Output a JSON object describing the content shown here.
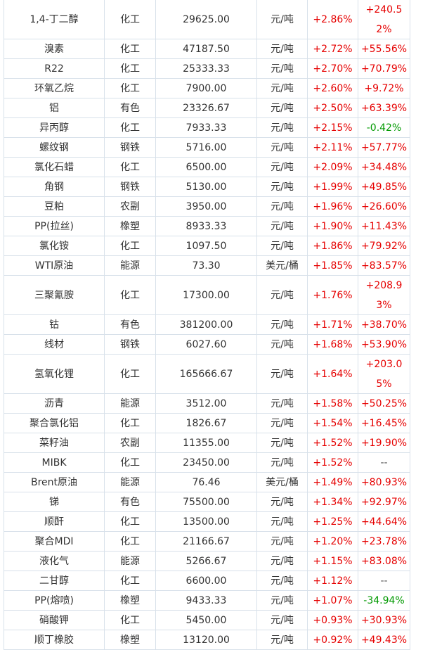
{
  "colors": {
    "up": "#e60000",
    "down": "#009900",
    "border": "#d8e1ea"
  },
  "rows": [
    {
      "name": "1,4-丁二醇",
      "cat": "化工",
      "price": "29625.00",
      "unit": "元/吨",
      "day": "+2.86%",
      "year": "+240.52%",
      "tall": true,
      "year_dir": "up"
    },
    {
      "name": "溴素",
      "cat": "化工",
      "price": "47187.50",
      "unit": "元/吨",
      "day": "+2.72%",
      "year": "+55.56%",
      "year_dir": "up"
    },
    {
      "name": "R22",
      "cat": "化工",
      "price": "25333.33",
      "unit": "元/吨",
      "day": "+2.70%",
      "year": "+70.79%",
      "year_dir": "up"
    },
    {
      "name": "环氧乙烷",
      "cat": "化工",
      "price": "7900.00",
      "unit": "元/吨",
      "day": "+2.60%",
      "year": "+9.72%",
      "year_dir": "up"
    },
    {
      "name": "铝",
      "cat": "有色",
      "price": "23326.67",
      "unit": "元/吨",
      "day": "+2.50%",
      "year": "+63.39%",
      "year_dir": "up"
    },
    {
      "name": "异丙醇",
      "cat": "化工",
      "price": "7933.33",
      "unit": "元/吨",
      "day": "+2.15%",
      "year": "-0.42%",
      "year_dir": "down"
    },
    {
      "name": "螺纹钢",
      "cat": "钢铁",
      "price": "5716.00",
      "unit": "元/吨",
      "day": "+2.11%",
      "year": "+57.77%",
      "year_dir": "up"
    },
    {
      "name": "氯化石蜡",
      "cat": "化工",
      "price": "6500.00",
      "unit": "元/吨",
      "day": "+2.09%",
      "year": "+34.48%",
      "year_dir": "up"
    },
    {
      "name": "角钢",
      "cat": "钢铁",
      "price": "5130.00",
      "unit": "元/吨",
      "day": "+1.99%",
      "year": "+49.85%",
      "year_dir": "up"
    },
    {
      "name": "豆粕",
      "cat": "农副",
      "price": "3950.00",
      "unit": "元/吨",
      "day": "+1.96%",
      "year": "+26.60%",
      "year_dir": "up"
    },
    {
      "name": "PP(拉丝)",
      "cat": "橡塑",
      "price": "8933.33",
      "unit": "元/吨",
      "day": "+1.90%",
      "year": "+11.43%",
      "year_dir": "up"
    },
    {
      "name": "氯化铵",
      "cat": "化工",
      "price": "1097.50",
      "unit": "元/吨",
      "day": "+1.86%",
      "year": "+79.92%",
      "year_dir": "up"
    },
    {
      "name": "WTI原油",
      "cat": "能源",
      "price": "73.30",
      "unit": "美元/桶",
      "day": "+1.85%",
      "year": "+83.57%",
      "year_dir": "up"
    },
    {
      "name": "三聚氰胺",
      "cat": "化工",
      "price": "17300.00",
      "unit": "元/吨",
      "day": "+1.76%",
      "year": "+208.93%",
      "tall": true,
      "year_dir": "up"
    },
    {
      "name": "钴",
      "cat": "有色",
      "price": "381200.00",
      "unit": "元/吨",
      "day": "+1.71%",
      "year": "+38.70%",
      "year_dir": "up"
    },
    {
      "name": "线材",
      "cat": "钢铁",
      "price": "6027.60",
      "unit": "元/吨",
      "day": "+1.68%",
      "year": "+53.90%",
      "year_dir": "up"
    },
    {
      "name": "氢氧化锂",
      "cat": "化工",
      "price": "165666.67",
      "unit": "元/吨",
      "day": "+1.64%",
      "year": "+203.05%",
      "tall": true,
      "year_dir": "up"
    },
    {
      "name": "沥青",
      "cat": "能源",
      "price": "3512.00",
      "unit": "元/吨",
      "day": "+1.58%",
      "year": "+50.25%",
      "year_dir": "up"
    },
    {
      "name": "聚合氯化铝",
      "cat": "化工",
      "price": "1826.67",
      "unit": "元/吨",
      "day": "+1.54%",
      "year": "+16.45%",
      "year_dir": "up"
    },
    {
      "name": "菜籽油",
      "cat": "农副",
      "price": "11355.00",
      "unit": "元/吨",
      "day": "+1.52%",
      "year": "+19.90%",
      "year_dir": "up"
    },
    {
      "name": "MIBK",
      "cat": "化工",
      "price": "23450.00",
      "unit": "元/吨",
      "day": "+1.52%",
      "year": "--",
      "year_dir": "flat"
    },
    {
      "name": "Brent原油",
      "cat": "能源",
      "price": "76.46",
      "unit": "美元/桶",
      "day": "+1.49%",
      "year": "+80.93%",
      "year_dir": "up"
    },
    {
      "name": "锑",
      "cat": "有色",
      "price": "75500.00",
      "unit": "元/吨",
      "day": "+1.34%",
      "year": "+92.97%",
      "year_dir": "up"
    },
    {
      "name": "顺酐",
      "cat": "化工",
      "price": "13500.00",
      "unit": "元/吨",
      "day": "+1.25%",
      "year": "+44.64%",
      "year_dir": "up"
    },
    {
      "name": "聚合MDI",
      "cat": "化工",
      "price": "21166.67",
      "unit": "元/吨",
      "day": "+1.20%",
      "year": "+23.78%",
      "year_dir": "up"
    },
    {
      "name": "液化气",
      "cat": "能源",
      "price": "5266.67",
      "unit": "元/吨",
      "day": "+1.15%",
      "year": "+83.08%",
      "year_dir": "up"
    },
    {
      "name": "二甘醇",
      "cat": "化工",
      "price": "6600.00",
      "unit": "元/吨",
      "day": "+1.12%",
      "year": "--",
      "year_dir": "flat"
    },
    {
      "name": "PP(熔喷)",
      "cat": "橡塑",
      "price": "9433.33",
      "unit": "元/吨",
      "day": "+1.07%",
      "year": "-34.94%",
      "year_dir": "down"
    },
    {
      "name": "硝酸钾",
      "cat": "化工",
      "price": "5450.00",
      "unit": "元/吨",
      "day": "+0.93%",
      "year": "+30.93%",
      "year_dir": "up"
    },
    {
      "name": "顺丁橡胶",
      "cat": "橡塑",
      "price": "13120.00",
      "unit": "元/吨",
      "day": "+0.92%",
      "year": "+49.43%",
      "year_dir": "up"
    }
  ]
}
